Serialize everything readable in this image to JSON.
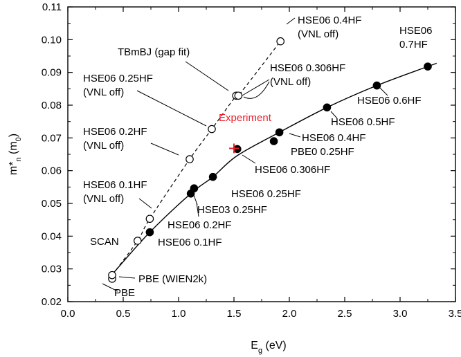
{
  "chart_data": {
    "type": "scatter",
    "xlabel": "E",
    "xlabel_sub": "g",
    "xlabel_unit": " (eV)",
    "ylabel_main": "m*",
    "ylabel_sub": "n",
    "ylabel_unit": " (m",
    "ylabel_unit_sub": "0",
    "ylabel_unit_close": ")",
    "xlim": [
      0.0,
      3.5
    ],
    "ylim": [
      0.02,
      0.11
    ],
    "xticks": [
      "0.0",
      "0.5",
      "1.0",
      "1.5",
      "2.0",
      "2.5",
      "3.0",
      "3.5"
    ],
    "yticks": [
      "0.02",
      "0.03",
      "0.04",
      "0.05",
      "0.06",
      "0.07",
      "0.08",
      "0.09",
      "0.10",
      "0.11"
    ],
    "grid": false,
    "series": [
      {
        "marker": "open-circle",
        "line": "dashed",
        "points": [
          {
            "x": 0.4,
            "y": 0.027,
            "label": "PBE"
          },
          {
            "x": 0.4,
            "y": 0.0281,
            "label": "PBE (WIEN2k)"
          },
          {
            "x": 0.63,
            "y": 0.0386,
            "label": "SCAN"
          },
          {
            "x": 0.74,
            "y": 0.0453,
            "label": "HSE06 0.1HF\n(VNL off)"
          },
          {
            "x": 1.1,
            "y": 0.0635,
            "label": "HSE06 0.2HF\n(VNL off)"
          },
          {
            "x": 1.3,
            "y": 0.0727,
            "label": "HSE06 0.25HF\n(VNL off)"
          },
          {
            "x": 1.52,
            "y": 0.0829,
            "label": "TBmBJ (gap fit)"
          },
          {
            "x": 1.54,
            "y": 0.0829,
            "label": "HSE06 0.306HF\n(VNL off)"
          },
          {
            "x": 1.92,
            "y": 0.0995,
            "label": "HSE06 0.4HF\n(VNL off)"
          }
        ]
      },
      {
        "marker": "filled-circle",
        "line": "solid",
        "points": [
          {
            "x": 0.74,
            "y": 0.0412,
            "label": "HSE06 0.1HF"
          },
          {
            "x": 1.11,
            "y": 0.053,
            "label": "HSE06 0.2HF"
          },
          {
            "x": 1.14,
            "y": 0.0546,
            "label": "HSE03 0.25HF"
          },
          {
            "x": 1.31,
            "y": 0.0581,
            "label": "HSE06 0.25HF"
          },
          {
            "x": 1.53,
            "y": 0.0666,
            "label": "HSE06 0.306HF"
          },
          {
            "x": 1.91,
            "y": 0.0717,
            "label": "HSE06 0.4HF"
          },
          {
            "x": 1.86,
            "y": 0.069,
            "label": "PBE0 0.25HF"
          },
          {
            "x": 2.34,
            "y": 0.0793,
            "label": "HSE06 0.5HF"
          },
          {
            "x": 2.79,
            "y": 0.086,
            "label": "HSE06 0.6HF"
          },
          {
            "x": 3.25,
            "y": 0.0918,
            "label": "HSE06\n0.7HF"
          }
        ]
      }
    ],
    "fit_curve": {
      "x": [
        0.4,
        0.74,
        1.11,
        1.31,
        1.53,
        1.91,
        2.34,
        2.79,
        3.25,
        3.33
      ],
      "y": [
        0.0283,
        0.0412,
        0.053,
        0.0581,
        0.0646,
        0.0717,
        0.0793,
        0.086,
        0.0918,
        0.0928
      ]
    },
    "experiment": {
      "x": 1.5,
      "y": 0.0668,
      "label": "Experiment",
      "color": "#e8202a"
    }
  }
}
